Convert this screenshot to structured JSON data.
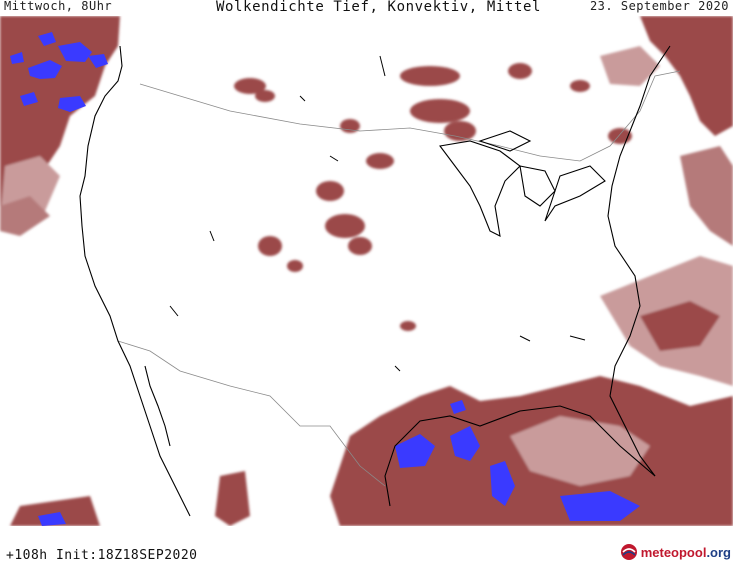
{
  "header": {
    "left": "Mittwoch, 8Uhr",
    "center": "Wolkendichte  Tief, Konvektiv, Mittel",
    "right": "23. September 2020"
  },
  "footer": {
    "run_info": "+108h Init:18Z18SEP2020",
    "logo_main": "meteopool",
    "logo_tld": ".org"
  },
  "colors": {
    "background": "#ffffff",
    "cloud_medium": "#9b4a4a",
    "cloud_light": "#c99b9b",
    "cloud_convective": "#3a3aff",
    "coastline": "#000000",
    "borders": "#8a8a8a"
  },
  "map": {
    "parameter": "cloud density: low, convective, medium",
    "region": "North America / contiguous USA",
    "icons": [
      "logo-globe-icon"
    ]
  }
}
